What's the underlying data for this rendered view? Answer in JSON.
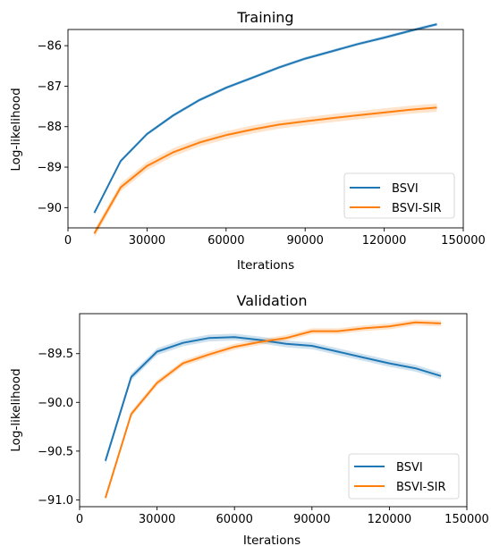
{
  "colors": {
    "series_a": "#1f77b4",
    "series_b": "#ff7f0e",
    "axis": "#000000"
  },
  "chart_data": [
    {
      "type": "line",
      "title": "Training",
      "xlabel": "Iterations",
      "ylabel": "Log-likelihood",
      "xlim": [
        0,
        150000
      ],
      "ylim": [
        -90.5,
        -85.6
      ],
      "xticks": [
        0,
        30000,
        60000,
        90000,
        120000,
        150000
      ],
      "xtick_labels": [
        "0",
        "30000",
        "60000",
        "90000",
        "120000",
        "150000"
      ],
      "yticks": [
        -90,
        -89,
        -88,
        -87,
        -86
      ],
      "ytick_labels": [
        "−90",
        "−89",
        "−88",
        "−87",
        "−86"
      ],
      "legend_position": "lower-right",
      "grid": false,
      "series": [
        {
          "name": "BSVI",
          "color": "#1f77b4",
          "x": [
            10000,
            20000,
            30000,
            40000,
            50000,
            60000,
            70000,
            80000,
            90000,
            100000,
            110000,
            120000,
            130000,
            140000
          ],
          "y": [
            -90.13,
            -88.85,
            -88.18,
            -87.72,
            -87.34,
            -87.04,
            -86.79,
            -86.54,
            -86.32,
            -86.14,
            -85.96,
            -85.8,
            -85.63,
            -85.47
          ],
          "band": 0.04
        },
        {
          "name": "BSVI-SIR",
          "color": "#ff7f0e",
          "x": [
            10000,
            20000,
            30000,
            40000,
            50000,
            60000,
            70000,
            80000,
            90000,
            100000,
            110000,
            120000,
            130000,
            140000
          ],
          "y": [
            -90.64,
            -89.5,
            -88.97,
            -88.63,
            -88.39,
            -88.21,
            -88.07,
            -87.95,
            -87.87,
            -87.79,
            -87.72,
            -87.65,
            -87.58,
            -87.53
          ],
          "band": 0.1
        }
      ]
    },
    {
      "type": "line",
      "title": "Validation",
      "xlabel": "Iterations",
      "ylabel": "Log-likelihood",
      "xlim": [
        0,
        150000
      ],
      "ylim": [
        -91.07,
        -89.09
      ],
      "xticks": [
        0,
        30000,
        60000,
        90000,
        120000,
        150000
      ],
      "xtick_labels": [
        "0",
        "30000",
        "60000",
        "90000",
        "120000",
        "150000"
      ],
      "yticks": [
        -91.0,
        -90.5,
        -90.0,
        -89.5
      ],
      "ytick_labels": [
        "−91.0",
        "−90.5",
        "−90.0",
        "−89.5"
      ],
      "legend_position": "lower-right",
      "grid": false,
      "series": [
        {
          "name": "BSVI",
          "color": "#1f77b4",
          "x": [
            10000,
            20000,
            30000,
            40000,
            50000,
            60000,
            70000,
            80000,
            90000,
            100000,
            110000,
            120000,
            130000,
            140000
          ],
          "y": [
            -90.6,
            -89.74,
            -89.48,
            -89.39,
            -89.34,
            -89.33,
            -89.36,
            -89.4,
            -89.42,
            -89.48,
            -89.54,
            -89.6,
            -89.65,
            -89.73
          ],
          "band": 0.035
        },
        {
          "name": "BSVI-SIR",
          "color": "#ff7f0e",
          "x": [
            10000,
            20000,
            30000,
            40000,
            50000,
            60000,
            70000,
            80000,
            90000,
            100000,
            110000,
            120000,
            130000,
            140000
          ],
          "y": [
            -90.98,
            -90.12,
            -89.8,
            -89.6,
            -89.51,
            -89.43,
            -89.38,
            -89.34,
            -89.27,
            -89.27,
            -89.24,
            -89.22,
            -89.18,
            -89.19
          ],
          "band": 0.03
        }
      ]
    }
  ]
}
